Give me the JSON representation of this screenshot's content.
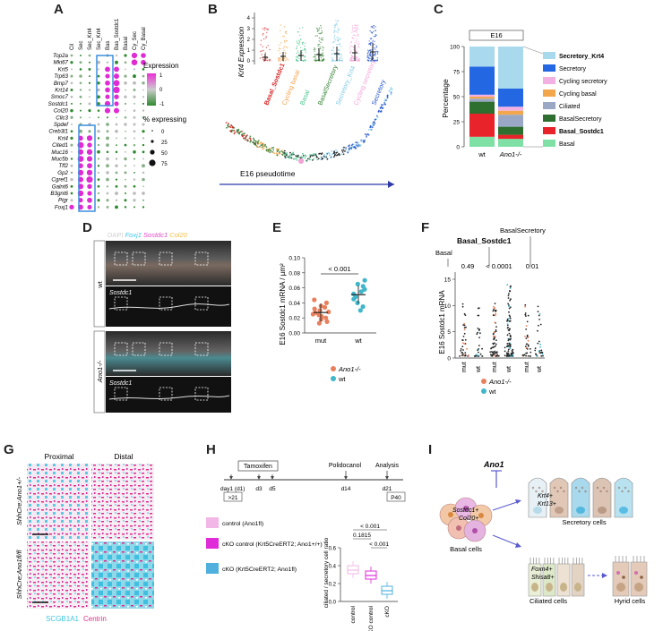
{
  "panels": {
    "A": "A",
    "B": "B",
    "C": "C",
    "D": "D",
    "E": "E",
    "F": "F",
    "G": "G",
    "H": "H",
    "I": "I"
  },
  "A": {
    "columns": [
      "Cil",
      "Sec",
      "Sec_Krt4",
      "Sec_Krt4",
      "Bas",
      "Bas_Sostdc1",
      "Basal",
      "Cy_Sec",
      "Cy_Basal"
    ],
    "genes": [
      "Top2a",
      "Mki67",
      "Krt5",
      "Trp63",
      "Bmp7",
      "Krt14",
      "Smoc7",
      "Sostdc1",
      "Col20",
      "Cllc3",
      "Spdef",
      "Creb3l1",
      "Krt4",
      "Cited1",
      "Muc16",
      "Muc5b",
      "Tff2",
      "Gp2",
      "Cgref1",
      "Galnt6",
      "B3gnt6",
      "Pigr",
      "Foxj1"
    ],
    "expression_title": "Expression",
    "expression_ticks": [
      "1",
      "0",
      "-1"
    ],
    "expressing_title": "% expressing",
    "expressing_values": [
      "0",
      "25",
      "50",
      "75"
    ]
  },
  "B": {
    "ylabel": "Krt4 Expression",
    "yticks": [
      "4",
      "3",
      "2",
      "1",
      "0"
    ],
    "groups": [
      {
        "label": "Basal_Sostdc1",
        "color": "#d62020"
      },
      {
        "label": "Cycling basal",
        "color": "#f3a24b"
      },
      {
        "label": "Basal",
        "color": "#48c48c"
      },
      {
        "label": "BasalSecretory",
        "color": "#2d7d2d"
      },
      {
        "label": "Secretory_Krt4",
        "color": "#7fc9e6"
      },
      {
        "label": "Cycling secretory",
        "color": "#f3a3d8"
      },
      {
        "label": "Secretory",
        "color": "#2151c9"
      }
    ],
    "xlabel": "E16 pseudotime"
  },
  "C": {
    "header": "E16",
    "ylabel": "Percentage",
    "yticks": [
      "100",
      "75",
      "50",
      "25",
      "0"
    ],
    "bars": [
      "wt",
      "Ano1-/-"
    ],
    "legend": [
      {
        "label": "Secretory_Krt4",
        "color": "#a9d9ec",
        "bold": true
      },
      {
        "label": "Secretory",
        "color": "#2467e3",
        "bold": false
      },
      {
        "label": "Cycling secretory",
        "color": "#f2b1e2",
        "bold": false
      },
      {
        "label": "Cycling basal",
        "color": "#f3a74d",
        "bold": false
      },
      {
        "label": "Ciliated",
        "color": "#9aa8c6",
        "bold": false
      },
      {
        "label": "BasalSecretory",
        "color": "#2e6e2e",
        "bold": false
      },
      {
        "label": "Basal_Sostdc1",
        "color": "#e8232a",
        "bold": true
      },
      {
        "label": "Basal",
        "color": "#7fe0a6",
        "bold": false
      }
    ]
  },
  "chart_data": [
    {
      "type": "bar",
      "title": "E16",
      "ylabel": "Percentage",
      "categories": [
        "wt",
        "Ano1-/-"
      ],
      "ylim": [
        0,
        100
      ],
      "series": [
        {
          "name": "Basal",
          "values": [
            10,
            8
          ]
        },
        {
          "name": "Basal_Sostdc1",
          "values": [
            23,
            4
          ]
        },
        {
          "name": "BasalSecretory",
          "values": [
            12,
            8
          ]
        },
        {
          "name": "Ciliated",
          "values": [
            3,
            12
          ]
        },
        {
          "name": "Cycling basal",
          "values": [
            2,
            4
          ]
        },
        {
          "name": "Cycling secretory",
          "values": [
            2,
            4
          ]
        },
        {
          "name": "Secretory",
          "values": [
            28,
            18
          ]
        },
        {
          "name": "Secretory_Krt4",
          "values": [
            20,
            42
          ]
        }
      ]
    },
    {
      "type": "scatter",
      "title": "",
      "ylabel": "E16 Sostdc1 mRNA / µm²",
      "categories": [
        "mut",
        "wt"
      ],
      "ylim": [
        0,
        0.1
      ],
      "series": [
        {
          "name": "Ano1-/-",
          "values": [
            0.013,
            0.015,
            0.018,
            0.02,
            0.022,
            0.024,
            0.025,
            0.027,
            0.028,
            0.03,
            0.032,
            0.034,
            0.036,
            0.04,
            0.044
          ]
        },
        {
          "name": "wt",
          "values": [
            0.03,
            0.035,
            0.04,
            0.045,
            0.048,
            0.052,
            0.055,
            0.058,
            0.062,
            0.065,
            0.07
          ]
        }
      ],
      "annotation": "< 0.001"
    },
    {
      "type": "scatter",
      "ylabel": "E16 Sostdc1 mRNA",
      "categories": [
        "Basal mut",
        "Basal wt",
        "Basal_Sostdc1 mut",
        "Basal_Sostdc1 wt",
        "BasalSecretory mut",
        "BasalSecretory wt"
      ],
      "pvalues": [
        "0.49",
        "< 0.0001",
        "0.01"
      ]
    },
    {
      "type": "box",
      "ylabel": "ciliated / secretory cell ratio",
      "categories": [
        "control",
        "cKO control",
        "cKO"
      ],
      "ylim": [
        0,
        0.6
      ],
      "medians": [
        0.35,
        0.29,
        0.12
      ],
      "pvalues": [
        "0.1815",
        "< 0.001",
        "< 0.001"
      ]
    }
  ],
  "D": {
    "legend_parts": [
      {
        "text": "DAPI ",
        "color": "#cfcfcf"
      },
      {
        "text": "Foxj1 ",
        "color": "#44c6e6"
      },
      {
        "text": "Sostdc1 ",
        "color": "#e048c6"
      },
      {
        "text": "Col20",
        "color": "#f1c24a"
      }
    ],
    "row_labels": [
      "wt",
      "Ano1-/-"
    ],
    "inset_label": "Sostdc1"
  },
  "E": {
    "ylabel": "E16 Sostdc1 mRNA / µm²",
    "yticks": [
      "0.10",
      "0.08",
      "0.06",
      "0.04",
      "0.02",
      "0.00"
    ],
    "xticks": [
      "mut",
      "wt"
    ],
    "pvalue": "< 0.001",
    "legend": [
      {
        "label": "Ano1-/-",
        "color": "#e8805e"
      },
      {
        "label": "wt",
        "color": "#3fb6c9"
      }
    ]
  },
  "F": {
    "group_labels": [
      "Basal",
      "Basal_Sostdc1",
      "BasalSecretory"
    ],
    "pvalues": [
      "0.49",
      "< 0.0001",
      "0.01"
    ],
    "ylabel": "E16 Sostdc1 mRNA",
    "yticks": [
      "15",
      "10",
      "5",
      "0"
    ],
    "xticks": [
      "mut",
      "wt",
      "mut",
      "wt",
      "mut",
      "wt"
    ],
    "legend": [
      {
        "label": "Ano1-/-",
        "color": "#e8805e"
      },
      {
        "label": "wt",
        "color": "#3fb6c9"
      }
    ]
  },
  "G": {
    "col_labels": [
      "Proximal",
      "Distal"
    ],
    "row_labels": [
      "ShhCre;Ano1+/-",
      "ShhCre;Ano1fl/fl"
    ],
    "legend": [
      {
        "label": "SCGB1A1",
        "color": "#3fc6e0"
      },
      {
        "label": "Centrin",
        "color": "#e0308c"
      }
    ]
  },
  "H": {
    "tamoxifen": "Tamoxifen",
    "polidocanol": "Polidocanol",
    "analysis": "Analysis",
    "days": [
      "day1 (d1)",
      "d3",
      "d5",
      "d14",
      "d21"
    ],
    "ages": [
      ">21",
      "P40"
    ],
    "legend": [
      {
        "label": "control (Ano1fl)",
        "color": "#f2b7e6"
      },
      {
        "label": "cKO control (Krt5CreERT2; Ano1+/+)",
        "color": "#e02cd8"
      },
      {
        "label": "cKO (Krt5CreERT2; Ano1fl)",
        "color": "#4fb0de"
      }
    ],
    "box_ylabel": "ciliated / secretory cell ratio",
    "box_yticks": [
      "0.6",
      "0.4",
      "0.2",
      "0.0"
    ],
    "box_xticks": [
      "control",
      "cKO control",
      "cKO"
    ],
    "pvalues": [
      "< 0.001",
      "0.1815",
      "< 0.001"
    ]
  },
  "I": {
    "ano1": "Ano1",
    "basal_markers": [
      "Sostdc1+",
      "Col20+"
    ],
    "basal_label": "Basal cells",
    "secretory_markers": [
      "Krt4+",
      "Krt13+"
    ],
    "secretory_label": "Secretory cells",
    "ciliated_markers": [
      "Foxn4+",
      "Shisa8+"
    ],
    "ciliated_label": "Ciliated cells",
    "hybrid_label": "Hyrid cells"
  }
}
